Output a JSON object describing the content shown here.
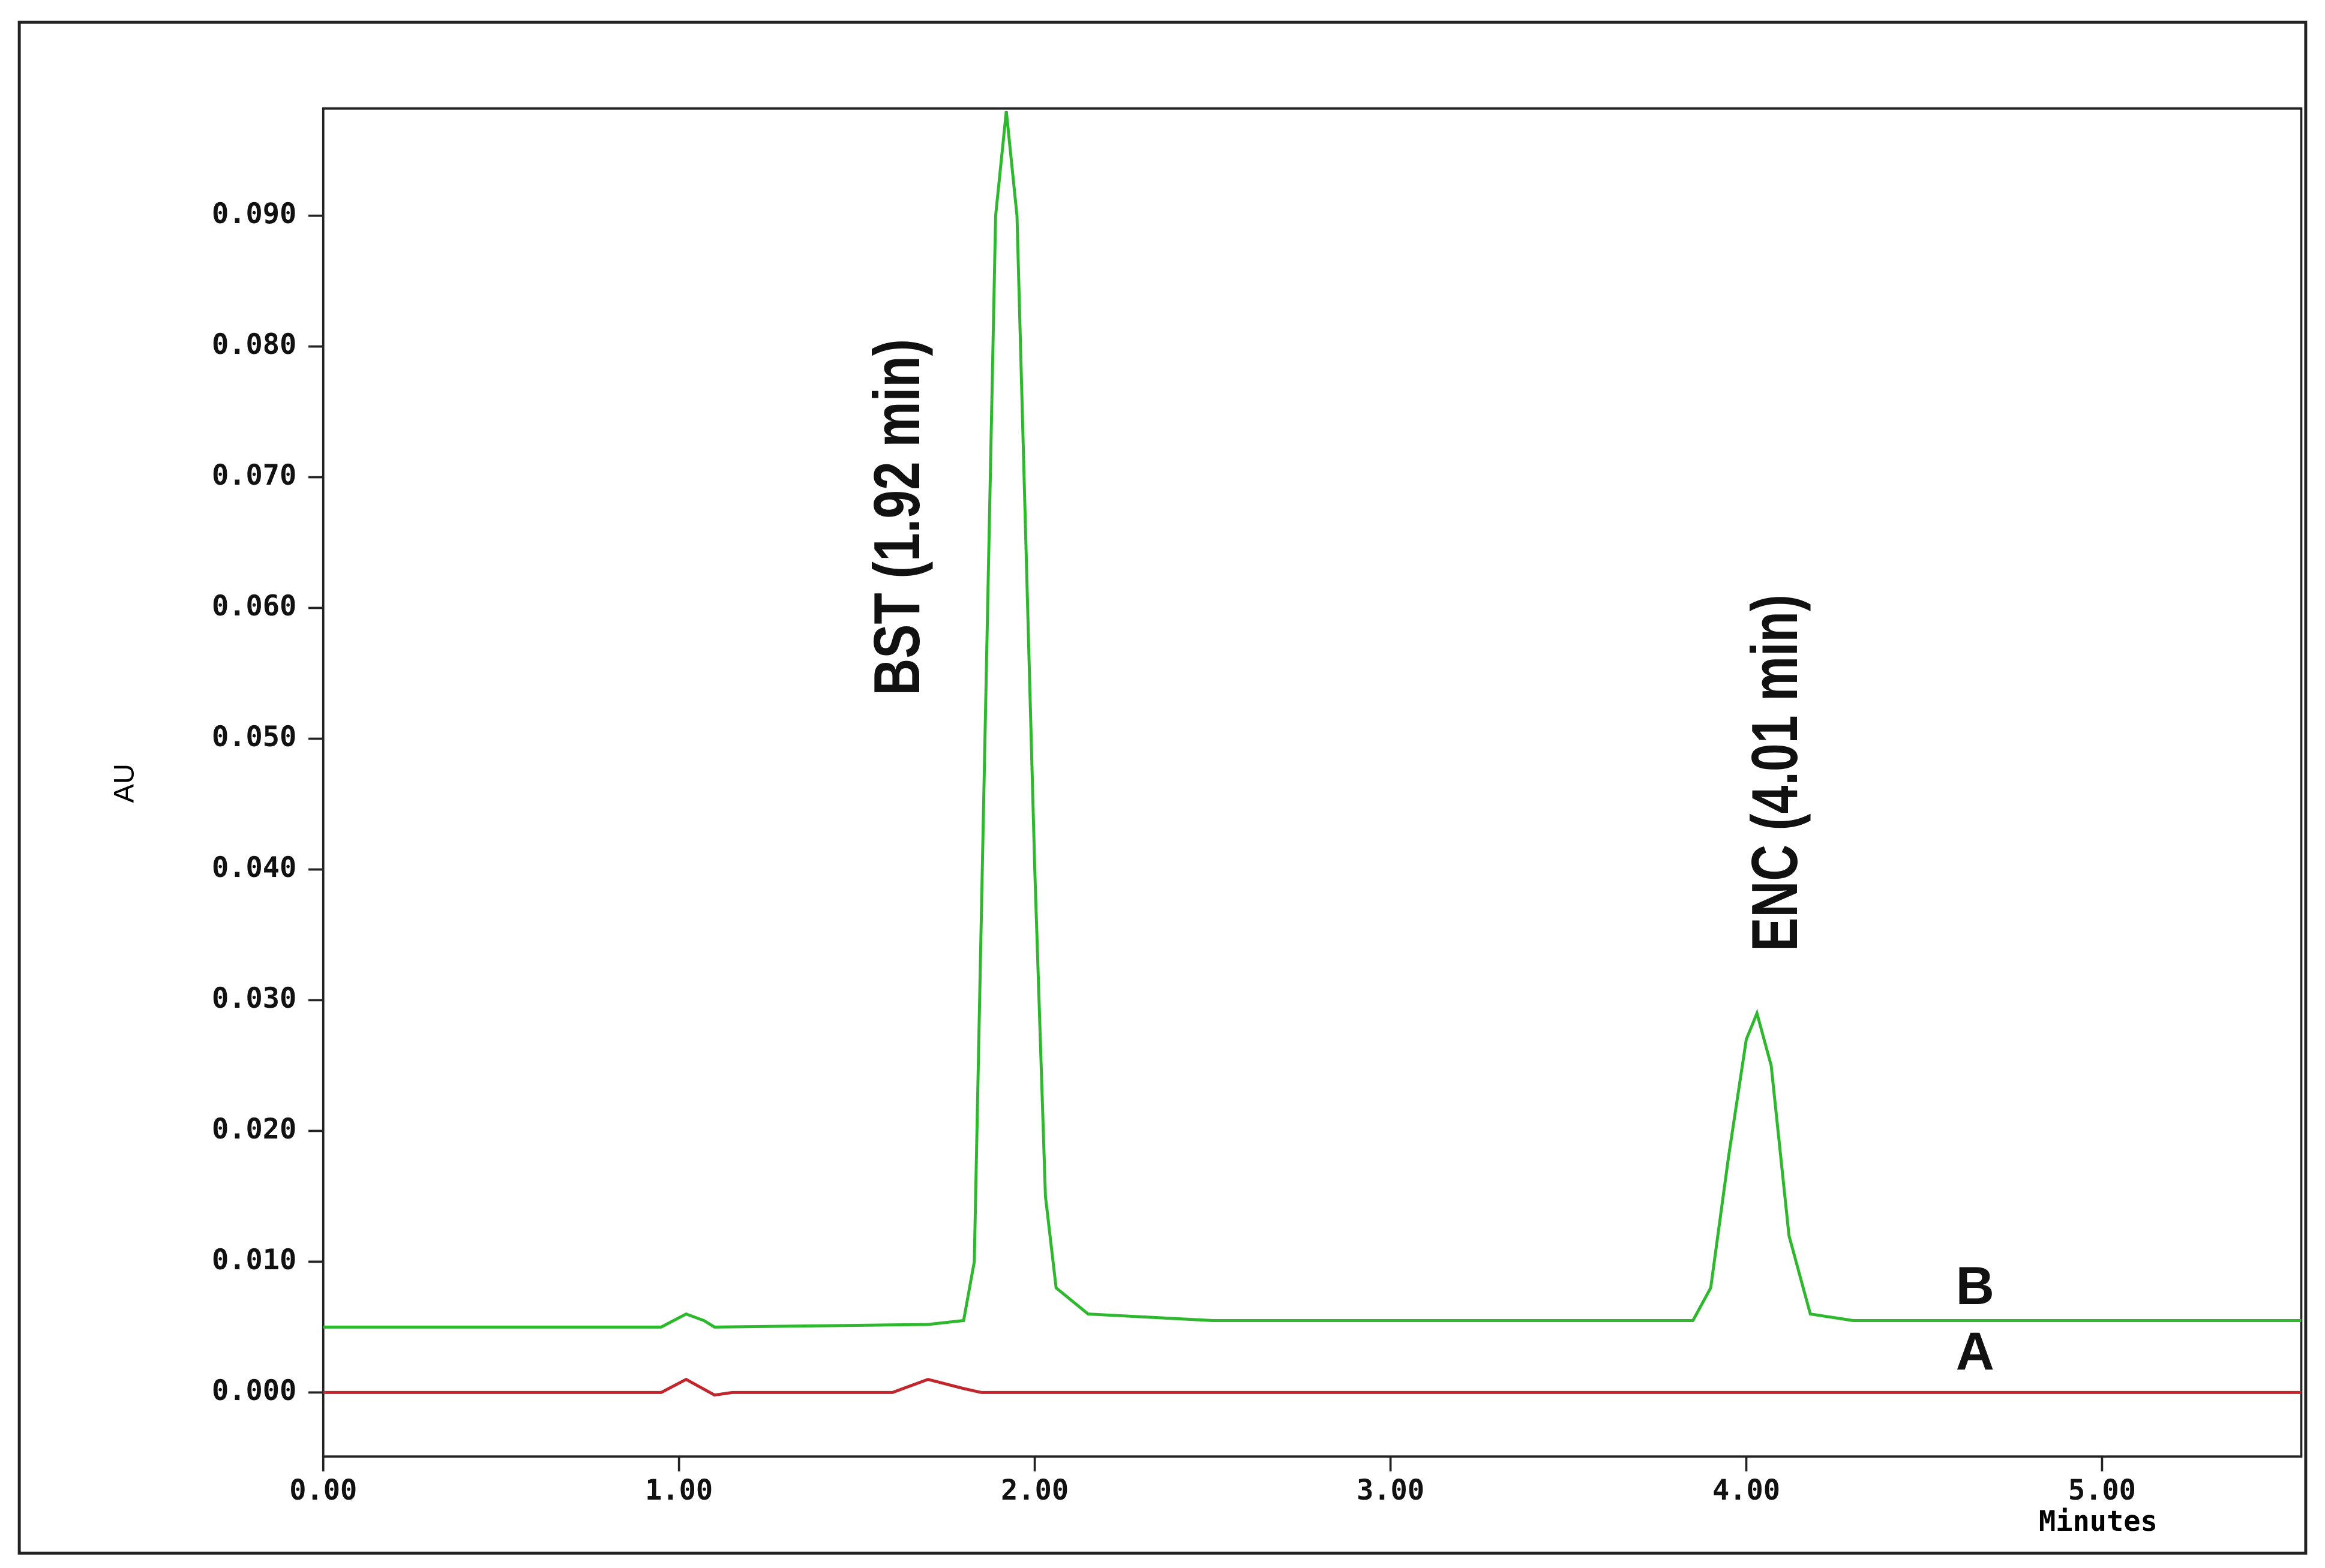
{
  "chart_data": {
    "type": "line",
    "xlabel": "Minutes",
    "ylabel": "AU",
    "xlim": [
      0,
      5.56
    ],
    "ylim": [
      -0.0049,
      0.0982
    ],
    "xticks": [
      {
        "value": 0,
        "label": "0.00"
      },
      {
        "value": 1,
        "label": "1.00"
      },
      {
        "value": 2,
        "label": "2.00"
      },
      {
        "value": 3,
        "label": "3.00"
      },
      {
        "value": 4,
        "label": "4.00"
      },
      {
        "value": 5,
        "label": "5.00"
      }
    ],
    "yticks": [
      {
        "value": 0,
        "label": "0.000"
      },
      {
        "value": 0.01,
        "label": "0.010"
      },
      {
        "value": 0.02,
        "label": "0.020"
      },
      {
        "value": 0.03,
        "label": "0.030"
      },
      {
        "value": 0.04,
        "label": "0.040"
      },
      {
        "value": 0.05,
        "label": "0.050"
      },
      {
        "value": 0.06,
        "label": "0.060"
      },
      {
        "value": 0.07,
        "label": "0.070"
      },
      {
        "value": 0.08,
        "label": "0.080"
      },
      {
        "value": 0.09,
        "label": "0.090"
      }
    ],
    "annotations": [
      "BST (1.92 min)",
      "ENC (4.01 min)"
    ],
    "series": [
      {
        "name": "B",
        "color": "#2db82d",
        "x": [
          0,
          0.95,
          1.02,
          1.07,
          1.1,
          1.7,
          1.8,
          1.83,
          1.86,
          1.89,
          1.92,
          1.95,
          1.98,
          2.0,
          2.03,
          2.06,
          2.15,
          2.5,
          3.85,
          3.9,
          3.95,
          4.0,
          4.03,
          4.07,
          4.12,
          4.18,
          4.3,
          5.56
        ],
        "values": [
          0.005,
          0.005,
          0.006,
          0.0055,
          0.005,
          0.0052,
          0.0055,
          0.01,
          0.05,
          0.09,
          0.098,
          0.09,
          0.06,
          0.04,
          0.015,
          0.008,
          0.006,
          0.0055,
          0.0055,
          0.008,
          0.018,
          0.027,
          0.029,
          0.025,
          0.012,
          0.006,
          0.0055,
          0.0055
        ]
      },
      {
        "name": "A",
        "color": "#c0262b",
        "x": [
          0,
          0.95,
          1.02,
          1.1,
          1.15,
          1.6,
          1.7,
          1.8,
          1.85,
          5.56
        ],
        "values": [
          0,
          0,
          0.001,
          -0.0002,
          0,
          0,
          0.001,
          0.0003,
          0,
          0
        ]
      }
    ]
  }
}
